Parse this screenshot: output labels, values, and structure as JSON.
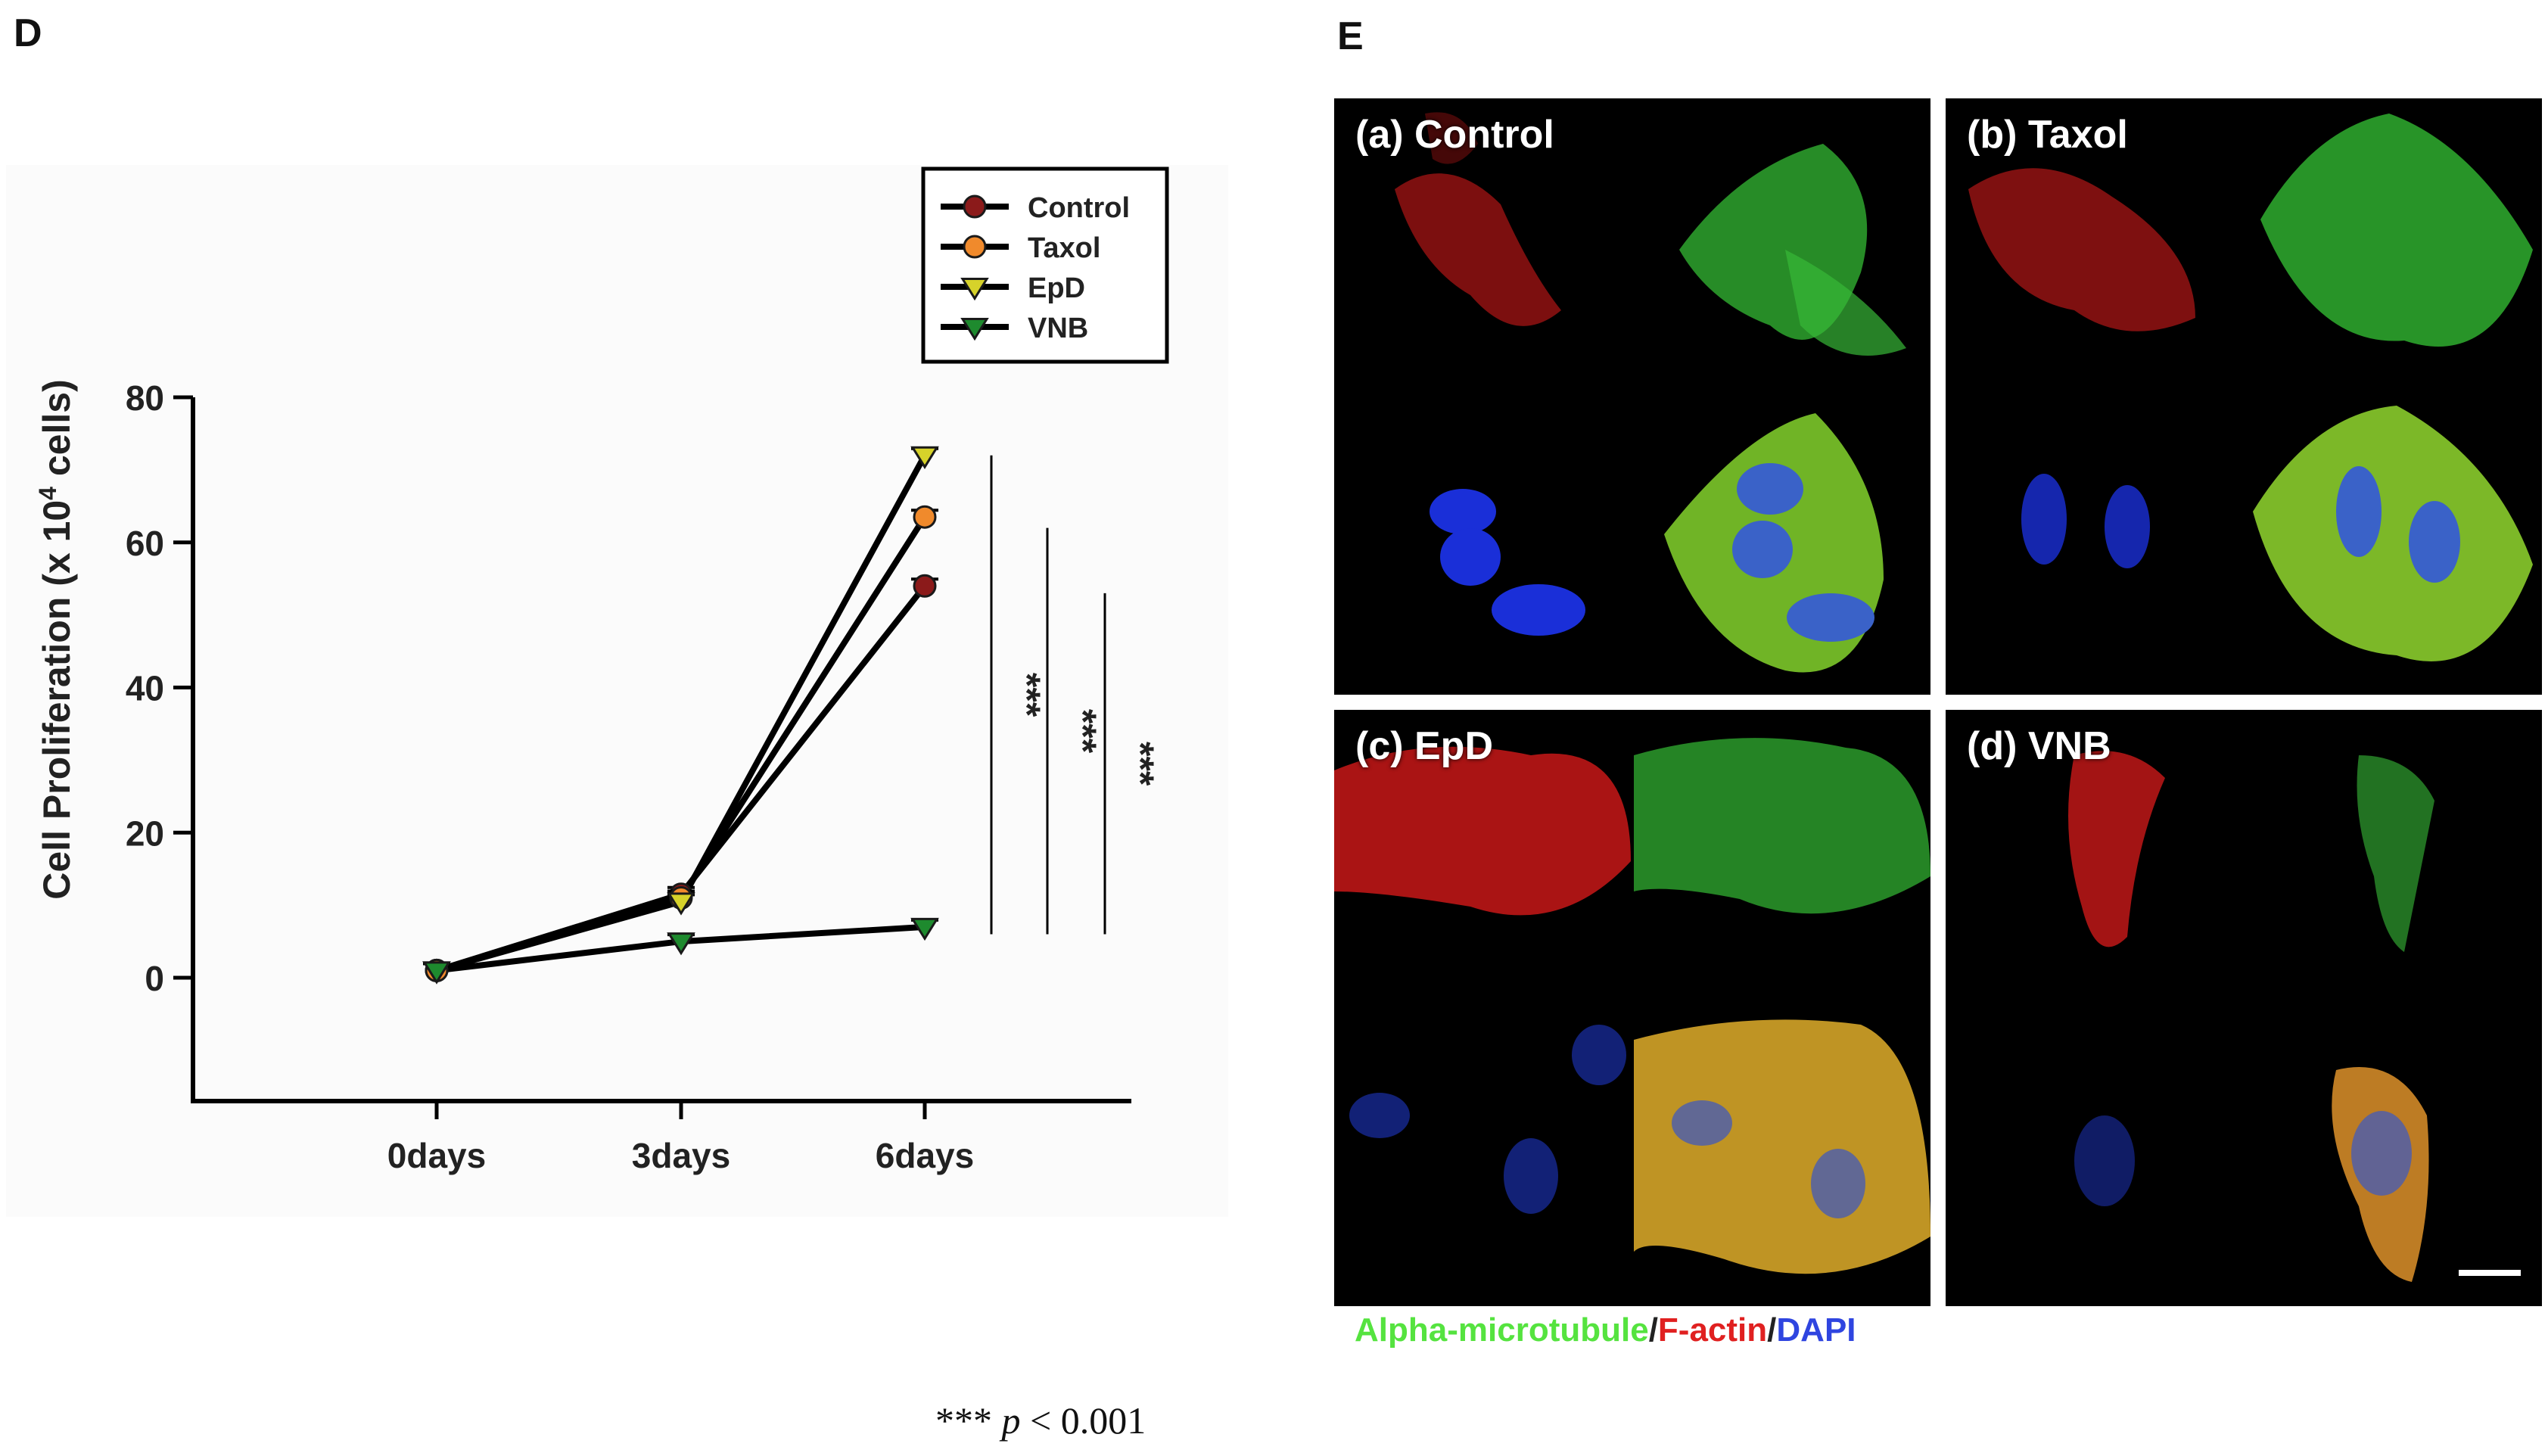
{
  "panels": {
    "d_letter": "D",
    "e_letter": "E"
  },
  "chart_data": {
    "type": "line",
    "categories": [
      "0days",
      "3days",
      "6days"
    ],
    "ylabel_prefix": "Cell Proliferation (x 10",
    "ylabel_exponent": "4",
    "ylabel_suffix": " cells)",
    "xlabel": "",
    "ylim": [
      -17,
      80
    ],
    "yticks": [
      0,
      20,
      40,
      60,
      80
    ],
    "series": [
      {
        "name": "Control",
        "values": [
          1,
          11.5,
          54
        ],
        "color": "#8b1a1a",
        "marker": "circle"
      },
      {
        "name": "Taxol",
        "values": [
          1,
          11,
          63.5
        ],
        "color": "#f08a2c",
        "marker": "circle"
      },
      {
        "name": "EpD",
        "values": [
          1,
          10.5,
          72
        ],
        "color": "#d6d22a",
        "marker": "triangle-down"
      },
      {
        "name": "VNB",
        "values": [
          1,
          5,
          7
        ],
        "color": "#1e8a2e",
        "marker": "triangle-down"
      }
    ],
    "legend_position": "top-right",
    "significance": [
      {
        "label": "***",
        "from": 6,
        "to": 72
      },
      {
        "label": "***",
        "from": 6,
        "to": 62
      },
      {
        "label": "***",
        "from": 6,
        "to": 53
      }
    ]
  },
  "micrographs": {
    "quadrants": [
      {
        "label": "(a) Control"
      },
      {
        "label": "(b) Taxol"
      },
      {
        "label": "(c) EpD"
      },
      {
        "label": "(d) VNB"
      }
    ],
    "caption": {
      "green": "Alpha-microtubule",
      "sep": "/",
      "red": "F-actin",
      "blue": "DAPI"
    }
  },
  "footnote": {
    "stars": "***",
    "p": "p",
    "rest": " < 0.001"
  }
}
